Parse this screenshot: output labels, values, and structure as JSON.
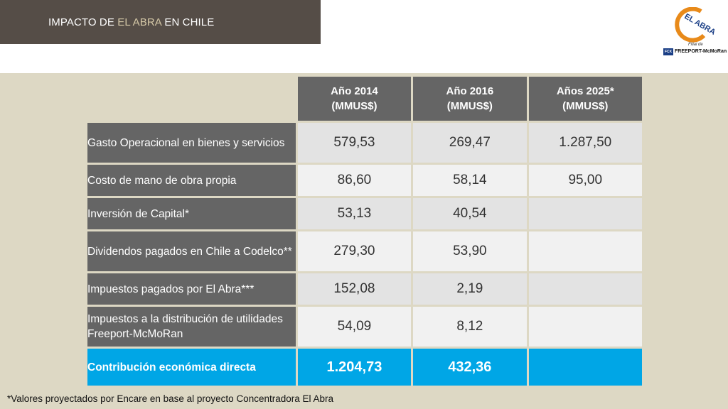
{
  "header": {
    "title_prefix": "IMPACTO DE ",
    "title_accent": "EL ABRA",
    "title_suffix": " EN CHILE"
  },
  "logo": {
    "name": "EL ABRA",
    "subtitle": "Filial de",
    "parent_box": "FCX",
    "parent_name": "FREEPORT-McMoRan"
  },
  "table": {
    "columns": [
      {
        "line1": "Año 2014",
        "line2": "(MMUS$)"
      },
      {
        "line1": "Año 2016",
        "line2": "(MMUS$)"
      },
      {
        "line1": "Años 2025*",
        "line2": "(MMUS$)"
      }
    ],
    "rows": [
      {
        "label": "Gasto Operacional en bienes y servicios",
        "values": [
          "579,53",
          "269,47",
          "1.287,50"
        ]
      },
      {
        "label": "Costo de mano de obra propia",
        "values": [
          "86,60",
          "58,14",
          "95,00"
        ]
      },
      {
        "label": "Inversión de Capital*",
        "values": [
          "53,13",
          "40,54",
          ""
        ]
      },
      {
        "label": "Dividendos pagados en Chile a Codelco**",
        "values": [
          "279,30",
          "53,90",
          ""
        ]
      },
      {
        "label": "Impuestos pagados por El Abra***",
        "values": [
          "152,08",
          "2,19",
          ""
        ]
      },
      {
        "label": "Impuestos a la distribución de utilidades Freeport-McMoRan",
        "values": [
          "54,09",
          "8,12",
          ""
        ]
      }
    ],
    "total": {
      "label": "Contribución económica directa",
      "values": [
        "1.204,73",
        "432,36",
        ""
      ]
    }
  },
  "footnote": "*Valores proyectados por Encare en base al proyecto Concentradora El Abra",
  "colors": {
    "title_bar": "#554d47",
    "title_accent": "#d6c9a8",
    "band": "#ddd8c4",
    "header_cell": "#656565",
    "total_row": "#00a6e6"
  }
}
